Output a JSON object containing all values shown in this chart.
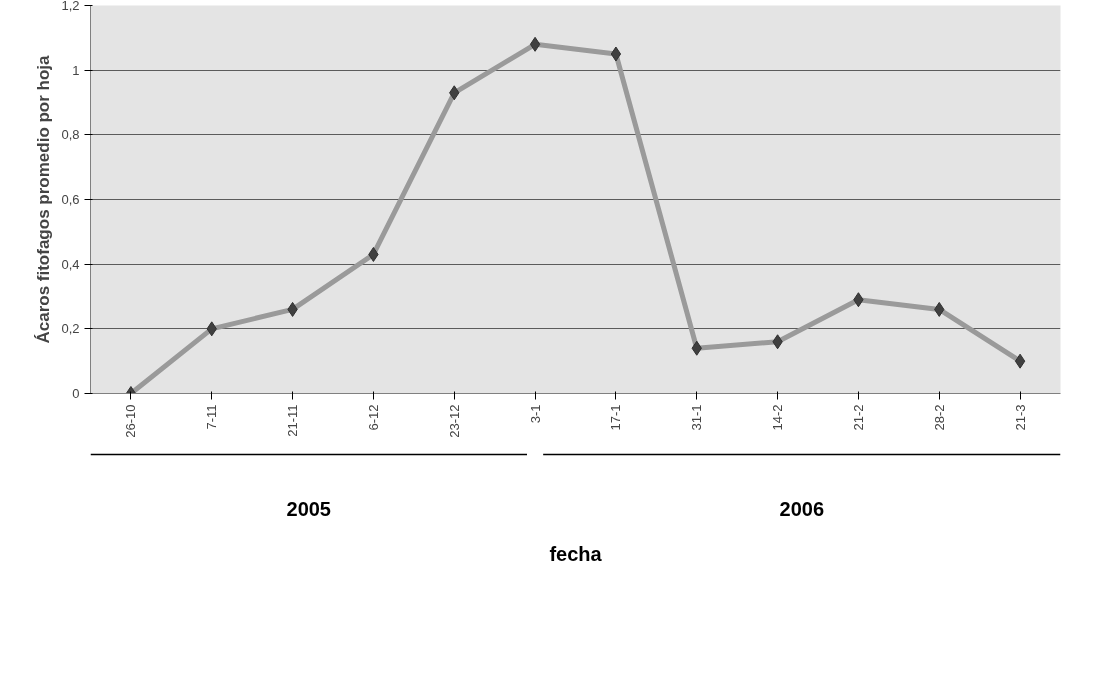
{
  "chart_data": {
    "type": "line",
    "ylabel": "Ácaros fitofagos promedio por hoja",
    "categories": [
      "26-10",
      "7-11",
      "21-11",
      "6-12",
      "23-12",
      "3-1",
      "17-1",
      "31-1",
      "14-2",
      "21-2",
      "28-2",
      "21-3"
    ],
    "series": [
      {
        "color": "#9a9a9a",
        "values": [
          0,
          0.2,
          0.26,
          0.43,
          0.93,
          1.08,
          1.05,
          0.14,
          0.16,
          0.29,
          0.26,
          0.1
        ]
      }
    ],
    "ylim": [
      0,
      1.2
    ],
    "yticks": [
      0,
      {
        "value": 0.2,
        "label": "0,2"
      },
      {
        "value": 0.4,
        "label": "0,4"
      },
      {
        "value": 0.6,
        "label": "0,6"
      },
      {
        "value": 0.8,
        "label": "0,8"
      },
      1,
      {
        "value": 1.2,
        "label": "1,2"
      }
    ],
    "grid": "y",
    "marker": "diamond",
    "line_style": "solid",
    "annotations": [
      "2005",
      "2006",
      "fecha"
    ]
  }
}
